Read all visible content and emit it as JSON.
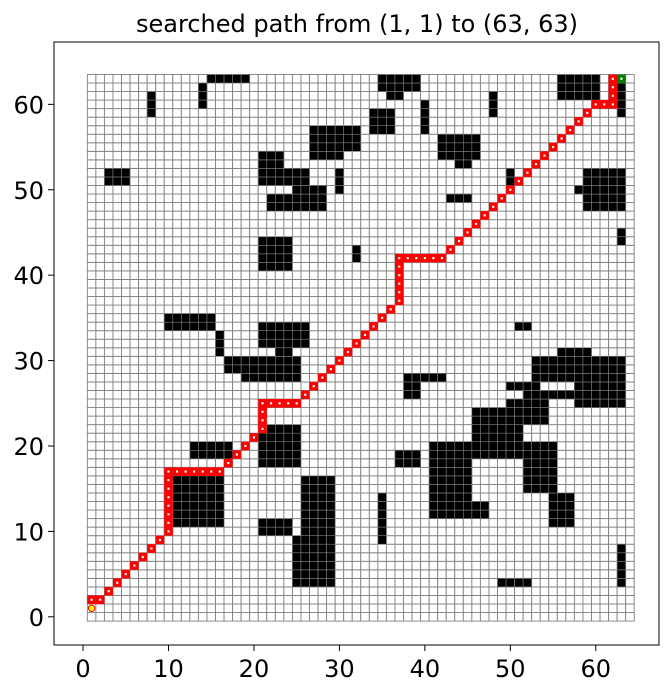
{
  "chart_data": {
    "type": "grid-path",
    "title": "searched path from (1, 1) to (63, 63)",
    "xlabel": "",
    "ylabel": "",
    "xlim": [
      -3.4,
      67.4
    ],
    "ylim": [
      -3.3,
      67.3
    ],
    "xticks": [
      0,
      10,
      20,
      30,
      40,
      50,
      60
    ],
    "yticks": [
      0,
      10,
      20,
      30,
      40,
      50,
      60
    ],
    "grid_size": 64,
    "start": [
      1,
      1
    ],
    "goal": [
      63,
      63
    ],
    "colors": {
      "free_cell_edge": "#808080",
      "obstacle": "#000000",
      "path": "#ff0000",
      "goal_marker": "#008000",
      "start_marker": "#ffff00",
      "start_marker_edge": "#ff0000"
    },
    "obstacles": [
      [
        15,
        63,
        19,
        63
      ],
      [
        35,
        62,
        39,
        63
      ],
      [
        36,
        61,
        37,
        61
      ],
      [
        56,
        61,
        60,
        63
      ],
      [
        62,
        62,
        63,
        63
      ],
      [
        8,
        59,
        8,
        61
      ],
      [
        14,
        60,
        14,
        62
      ],
      [
        63,
        59,
        63,
        61
      ],
      [
        40,
        57,
        40,
        60
      ],
      [
        48,
        59,
        48,
        61
      ],
      [
        34,
        57,
        36,
        59
      ],
      [
        27,
        55,
        32,
        57
      ],
      [
        27,
        54,
        30,
        54
      ],
      [
        21,
        53,
        23,
        54
      ],
      [
        21,
        51,
        26,
        52
      ],
      [
        25,
        50,
        28,
        50
      ],
      [
        22,
        48,
        28,
        49
      ],
      [
        30,
        50,
        30,
        52
      ],
      [
        42,
        54,
        46,
        56
      ],
      [
        44,
        53,
        45,
        53
      ],
      [
        3,
        51,
        5,
        52
      ],
      [
        59,
        48,
        63,
        52
      ],
      [
        43,
        49,
        45,
        49
      ],
      [
        63,
        44,
        63,
        45
      ],
      [
        58,
        50,
        58,
        50
      ],
      [
        50,
        50,
        50,
        52
      ],
      [
        21,
        41,
        24,
        44
      ],
      [
        32,
        42,
        32,
        43
      ],
      [
        10,
        34,
        15,
        35
      ],
      [
        16,
        31,
        16,
        33
      ],
      [
        21,
        32,
        26,
        34
      ],
      [
        23,
        31,
        24,
        31
      ],
      [
        17,
        29,
        25,
        30
      ],
      [
        19,
        28,
        25,
        28
      ],
      [
        51,
        34,
        52,
        34
      ],
      [
        56,
        29,
        59,
        31
      ],
      [
        53,
        28,
        63,
        30
      ],
      [
        50,
        27,
        53,
        27
      ],
      [
        58,
        25,
        63,
        27
      ],
      [
        52,
        26,
        57,
        26
      ],
      [
        50,
        23,
        54,
        25
      ],
      [
        46,
        19,
        51,
        24
      ],
      [
        21,
        18,
        25,
        22
      ],
      [
        13,
        19,
        17,
        20
      ],
      [
        38,
        28,
        42,
        28
      ],
      [
        38,
        26,
        39,
        27
      ],
      [
        37,
        18,
        39,
        19
      ],
      [
        41,
        14,
        45,
        20
      ],
      [
        52,
        15,
        55,
        20
      ],
      [
        55,
        11,
        57,
        14
      ],
      [
        41,
        12,
        47,
        13
      ],
      [
        11,
        11,
        16,
        16
      ],
      [
        10,
        11,
        10,
        11
      ],
      [
        26,
        10,
        29,
        16
      ],
      [
        21,
        10,
        24,
        11
      ],
      [
        35,
        9,
        35,
        14
      ],
      [
        25,
        4,
        29,
        9
      ],
      [
        63,
        4,
        63,
        8
      ],
      [
        49,
        4,
        52,
        4
      ]
    ],
    "path": [
      [
        1,
        2
      ],
      [
        2,
        2
      ],
      [
        3,
        3
      ],
      [
        4,
        4
      ],
      [
        5,
        5
      ],
      [
        6,
        6
      ],
      [
        7,
        7
      ],
      [
        8,
        8
      ],
      [
        9,
        9
      ],
      [
        10,
        10
      ],
      [
        10,
        11
      ],
      [
        10,
        12
      ],
      [
        10,
        13
      ],
      [
        10,
        14
      ],
      [
        10,
        15
      ],
      [
        10,
        16
      ],
      [
        10,
        17
      ],
      [
        11,
        17
      ],
      [
        12,
        17
      ],
      [
        13,
        17
      ],
      [
        14,
        17
      ],
      [
        15,
        17
      ],
      [
        16,
        17
      ],
      [
        17,
        18
      ],
      [
        18,
        19
      ],
      [
        19,
        20
      ],
      [
        20,
        21
      ],
      [
        21,
        22
      ],
      [
        21,
        23
      ],
      [
        21,
        24
      ],
      [
        21,
        25
      ],
      [
        22,
        25
      ],
      [
        23,
        25
      ],
      [
        24,
        25
      ],
      [
        25,
        25
      ],
      [
        26,
        26
      ],
      [
        27,
        27
      ],
      [
        28,
        28
      ],
      [
        29,
        29
      ],
      [
        30,
        30
      ],
      [
        31,
        31
      ],
      [
        32,
        32
      ],
      [
        33,
        33
      ],
      [
        34,
        34
      ],
      [
        35,
        35
      ],
      [
        36,
        36
      ],
      [
        37,
        37
      ],
      [
        37,
        38
      ],
      [
        37,
        39
      ],
      [
        37,
        40
      ],
      [
        37,
        41
      ],
      [
        37,
        42
      ],
      [
        38,
        42
      ],
      [
        39,
        42
      ],
      [
        40,
        42
      ],
      [
        41,
        42
      ],
      [
        42,
        42
      ],
      [
        43,
        43
      ],
      [
        44,
        44
      ],
      [
        45,
        45
      ],
      [
        46,
        46
      ],
      [
        47,
        47
      ],
      [
        48,
        48
      ],
      [
        49,
        49
      ],
      [
        50,
        50
      ],
      [
        51,
        51
      ],
      [
        52,
        52
      ],
      [
        53,
        53
      ],
      [
        54,
        54
      ],
      [
        55,
        55
      ],
      [
        56,
        56
      ],
      [
        57,
        57
      ],
      [
        58,
        58
      ],
      [
        59,
        59
      ],
      [
        60,
        60
      ],
      [
        61,
        60
      ],
      [
        62,
        60
      ],
      [
        62,
        61
      ],
      [
        62,
        62
      ],
      [
        62,
        63
      ]
    ]
  }
}
